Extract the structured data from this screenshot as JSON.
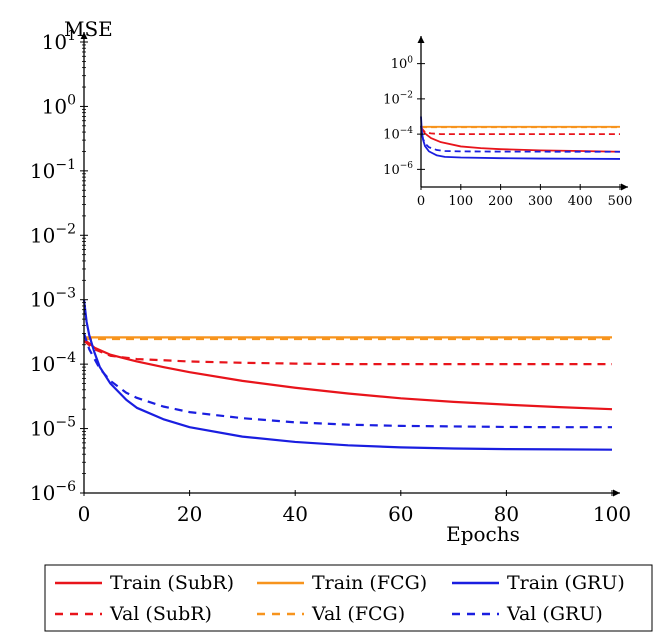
{
  "chart_data": [
    {
      "type": "line",
      "xlabel": "Epochs",
      "ylabel": "MSE",
      "y_scale": "log",
      "xlim": [
        0,
        100
      ],
      "ylim": [
        1e-06,
        10
      ],
      "x_ticks": [
        0,
        20,
        40,
        60,
        80,
        100
      ],
      "y_ticks": [
        {
          "value": 1e-06,
          "base": "10",
          "exp": "−6"
        },
        {
          "value": 1e-05,
          "base": "10",
          "exp": "−5"
        },
        {
          "value": 0.0001,
          "base": "10",
          "exp": "−4"
        },
        {
          "value": 0.001,
          "base": "10",
          "exp": "−3"
        },
        {
          "value": 0.01,
          "base": "10",
          "exp": "−2"
        },
        {
          "value": 0.1,
          "base": "10",
          "exp": "−1"
        },
        {
          "value": 1,
          "base": "10",
          "exp": "0"
        },
        {
          "value": 10,
          "base": "10",
          "exp": "1"
        }
      ],
      "grid": false,
      "legend_position": "bottom",
      "series": [
        {
          "name": "Train (SubR)",
          "color": "#e8141b",
          "dash": "solid",
          "x": [
            0,
            1,
            2,
            5,
            10,
            15,
            20,
            30,
            40,
            50,
            60,
            70,
            80,
            90,
            100
          ],
          "y": [
            0.00024,
            0.00021,
            0.00018,
            0.00014,
            0.00011,
            9e-05,
            7.5e-05,
            5.5e-05,
            4.3e-05,
            3.5e-05,
            2.95e-05,
            2.6e-05,
            2.35e-05,
            2.15e-05,
            2e-05
          ]
        },
        {
          "name": "Val (SubR)",
          "color": "#e8141b",
          "dash": "dashed",
          "x": [
            0,
            2,
            5,
            10,
            20,
            30,
            40,
            50,
            60,
            70,
            80,
            90,
            100
          ],
          "y": [
            0.00023,
            0.00017,
            0.000135,
            0.00012,
            0.00011,
            0.000105,
            0.000102,
            0.0001,
            0.0001,
            0.0001,
            0.0001,
            0.0001,
            0.0001
          ]
        },
        {
          "name": "Train (FCG)",
          "color": "#f7941d",
          "dash": "solid",
          "x": [
            0,
            100
          ],
          "y": [
            0.00026,
            0.00026
          ]
        },
        {
          "name": "Val (FCG)",
          "color": "#f7941d",
          "dash": "dashed",
          "x": [
            0,
            100
          ],
          "y": [
            0.000245,
            0.000245
          ]
        },
        {
          "name": "Train (GRU)",
          "color": "#1a1ee0",
          "dash": "solid",
          "x": [
            0,
            0.5,
            1,
            2,
            3,
            5,
            8,
            10,
            15,
            20,
            30,
            40,
            50,
            60,
            70,
            80,
            90,
            100
          ],
          "y": [
            0.001,
            0.00045,
            0.00028,
            0.00015,
            9e-05,
            5e-05,
            2.8e-05,
            2.1e-05,
            1.4e-05,
            1.05e-05,
            7.5e-06,
            6.2e-06,
            5.5e-06,
            5.1e-06,
            4.9e-06,
            4.8e-06,
            4.75e-06,
            4.7e-06
          ]
        },
        {
          "name": "Val (GRU)",
          "color": "#1a1ee0",
          "dash": "dashed",
          "x": [
            0,
            1,
            2,
            3,
            5,
            8,
            10,
            15,
            20,
            30,
            40,
            50,
            60,
            70,
            80,
            90,
            100
          ],
          "y": [
            0.0003,
            0.00017,
            0.00012,
            8.5e-05,
            5.5e-05,
            3.6e-05,
            3e-05,
            2.2e-05,
            1.8e-05,
            1.45e-05,
            1.25e-05,
            1.15e-05,
            1.1e-05,
            1.08e-05,
            1.06e-05,
            1.05e-05,
            1.05e-05
          ]
        }
      ]
    },
    {
      "type": "line",
      "xlabel": "",
      "ylabel": "",
      "y_scale": "log",
      "xlim": [
        0,
        500
      ],
      "ylim": [
        1e-07,
        10
      ],
      "x_ticks": [
        0,
        100,
        200,
        300,
        400,
        500
      ],
      "y_ticks": [
        {
          "value": 1e-06,
          "base": "10",
          "exp": "−6"
        },
        {
          "value": 0.0001,
          "base": "10",
          "exp": "−4"
        },
        {
          "value": 0.01,
          "base": "10",
          "exp": "−2"
        },
        {
          "value": 1,
          "base": "10",
          "exp": "0"
        }
      ],
      "grid": false,
      "series": [
        {
          "name": "Train (SubR)",
          "color": "#e8141b",
          "dash": "solid",
          "x": [
            0,
            10,
            25,
            50,
            100,
            150,
            200,
            300,
            400,
            500
          ],
          "y": [
            0.00024,
            0.00011,
            6e-05,
            3.5e-05,
            2e-05,
            1.6e-05,
            1.4e-05,
            1.2e-05,
            1.1e-05,
            1e-05
          ]
        },
        {
          "name": "Val (SubR)",
          "color": "#e8141b",
          "dash": "dashed",
          "x": [
            0,
            10,
            25,
            50,
            500
          ],
          "y": [
            0.00023,
            0.00013,
            0.00011,
            0.0001,
            0.0001
          ]
        },
        {
          "name": "Train (FCG)",
          "color": "#f7941d",
          "dash": "solid",
          "x": [
            0,
            500
          ],
          "y": [
            0.00026,
            0.00026
          ]
        },
        {
          "name": "Val (FCG)",
          "color": "#f7941d",
          "dash": "dashed",
          "x": [
            0,
            500
          ],
          "y": [
            0.000245,
            0.000245
          ]
        },
        {
          "name": "Train (GRU)",
          "color": "#1a1ee0",
          "dash": "solid",
          "x": [
            0,
            2,
            5,
            10,
            20,
            40,
            60,
            100,
            200,
            300,
            400,
            500
          ],
          "y": [
            0.001,
            0.00015,
            5e-05,
            2.1e-05,
            1.05e-05,
            6.2e-06,
            5.1e-06,
            4.7e-06,
            4.3e-06,
            4.1e-06,
            4e-06,
            3.9e-06
          ]
        },
        {
          "name": "Val (GRU)",
          "color": "#1a1ee0",
          "dash": "dashed",
          "x": [
            0,
            2,
            5,
            10,
            20,
            40,
            60,
            100,
            200,
            500
          ],
          "y": [
            0.0003,
            0.00012,
            5.5e-05,
            3e-05,
            1.8e-05,
            1.25e-05,
            1.1e-05,
            1.05e-05,
            1.02e-05,
            1e-05
          ]
        }
      ]
    }
  ],
  "legend": {
    "rows": [
      [
        {
          "label": "Train (SubR)",
          "color": "#e8141b",
          "dash": "solid"
        },
        {
          "label": "Train (FCG)",
          "color": "#f7941d",
          "dash": "solid"
        },
        {
          "label": "Train (GRU)",
          "color": "#1a1ee0",
          "dash": "solid"
        }
      ],
      [
        {
          "label": "Val (SubR)",
          "color": "#e8141b",
          "dash": "dashed"
        },
        {
          "label": "Val (FCG)",
          "color": "#f7941d",
          "dash": "dashed"
        },
        {
          "label": "Val (GRU)",
          "color": "#1a1ee0",
          "dash": "dashed"
        }
      ]
    ]
  }
}
